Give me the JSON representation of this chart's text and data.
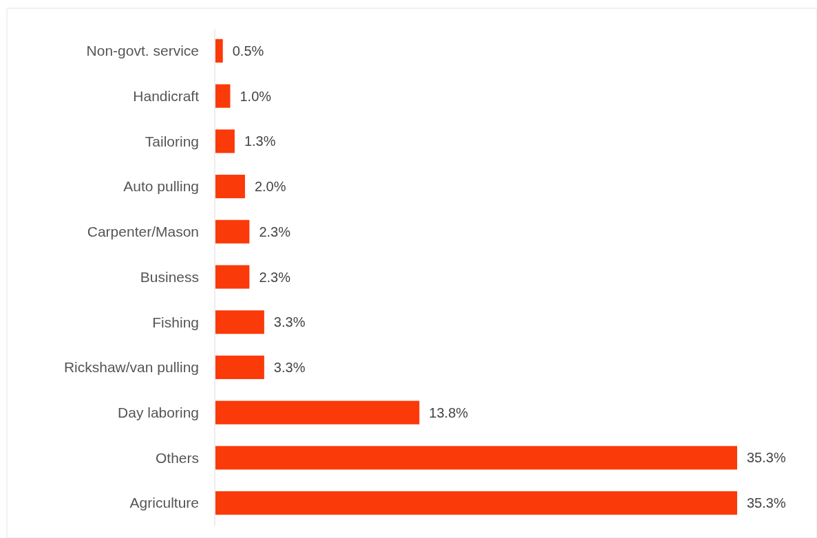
{
  "chart_data": {
    "type": "bar",
    "orientation": "horizontal",
    "categories": [
      "Non-govt. service",
      "Handicraft",
      "Tailoring",
      "Auto pulling",
      "Carpenter/Mason",
      "Business",
      "Fishing",
      "Rickshaw/van pulling",
      "Day laboring",
      "Others",
      "Agriculture"
    ],
    "values": [
      0.5,
      1.0,
      1.3,
      2.0,
      2.3,
      2.3,
      3.3,
      3.3,
      13.8,
      35.3,
      35.3
    ],
    "value_labels": [
      "0.5%",
      "1.0%",
      "1.3%",
      "2.0%",
      "2.3%",
      "2.3%",
      "3.3%",
      "3.3%",
      "13.8%",
      "35.3%",
      "35.3%"
    ],
    "color": "#fb3a0a"
  }
}
